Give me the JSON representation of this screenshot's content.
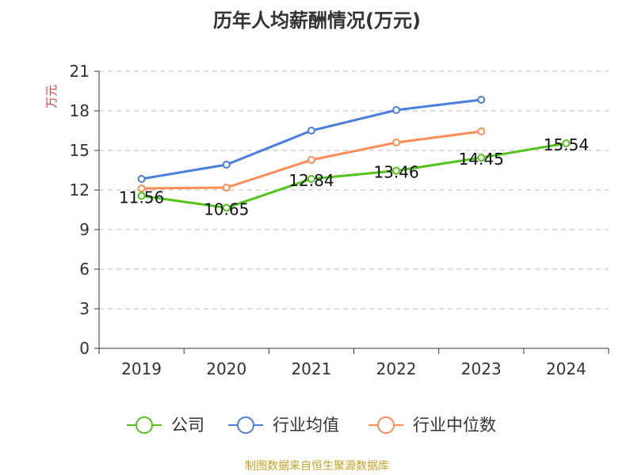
{
  "chart_data": {
    "type": "line",
    "title": "历年人均薪酬情况(万元)",
    "ylabel": "万元",
    "xlabel": "",
    "ylim": [
      0,
      21
    ],
    "yticks": [
      0,
      3,
      6,
      9,
      12,
      15,
      18,
      21
    ],
    "categories": [
      "2019",
      "2020",
      "2021",
      "2022",
      "2023",
      "2024"
    ],
    "grid": true,
    "legend_position": "bottom",
    "series": [
      {
        "name": "公司",
        "color": "#52c41a",
        "values": [
          11.56,
          10.65,
          12.84,
          13.46,
          14.45,
          15.54
        ],
        "labels": [
          "11.56",
          "10.65",
          "12.84",
          "13.46",
          "14.45",
          "15.54"
        ]
      },
      {
        "name": "行业均值",
        "color": "#4a7ede",
        "values": [
          12.84,
          13.92,
          16.5,
          18.06,
          18.84,
          null
        ]
      },
      {
        "name": "行业中位数",
        "color": "#ff8c55",
        "values": [
          12.12,
          12.18,
          14.28,
          15.6,
          16.44,
          null
        ]
      }
    ]
  },
  "source": "制图数据来自恒生聚源数据库"
}
